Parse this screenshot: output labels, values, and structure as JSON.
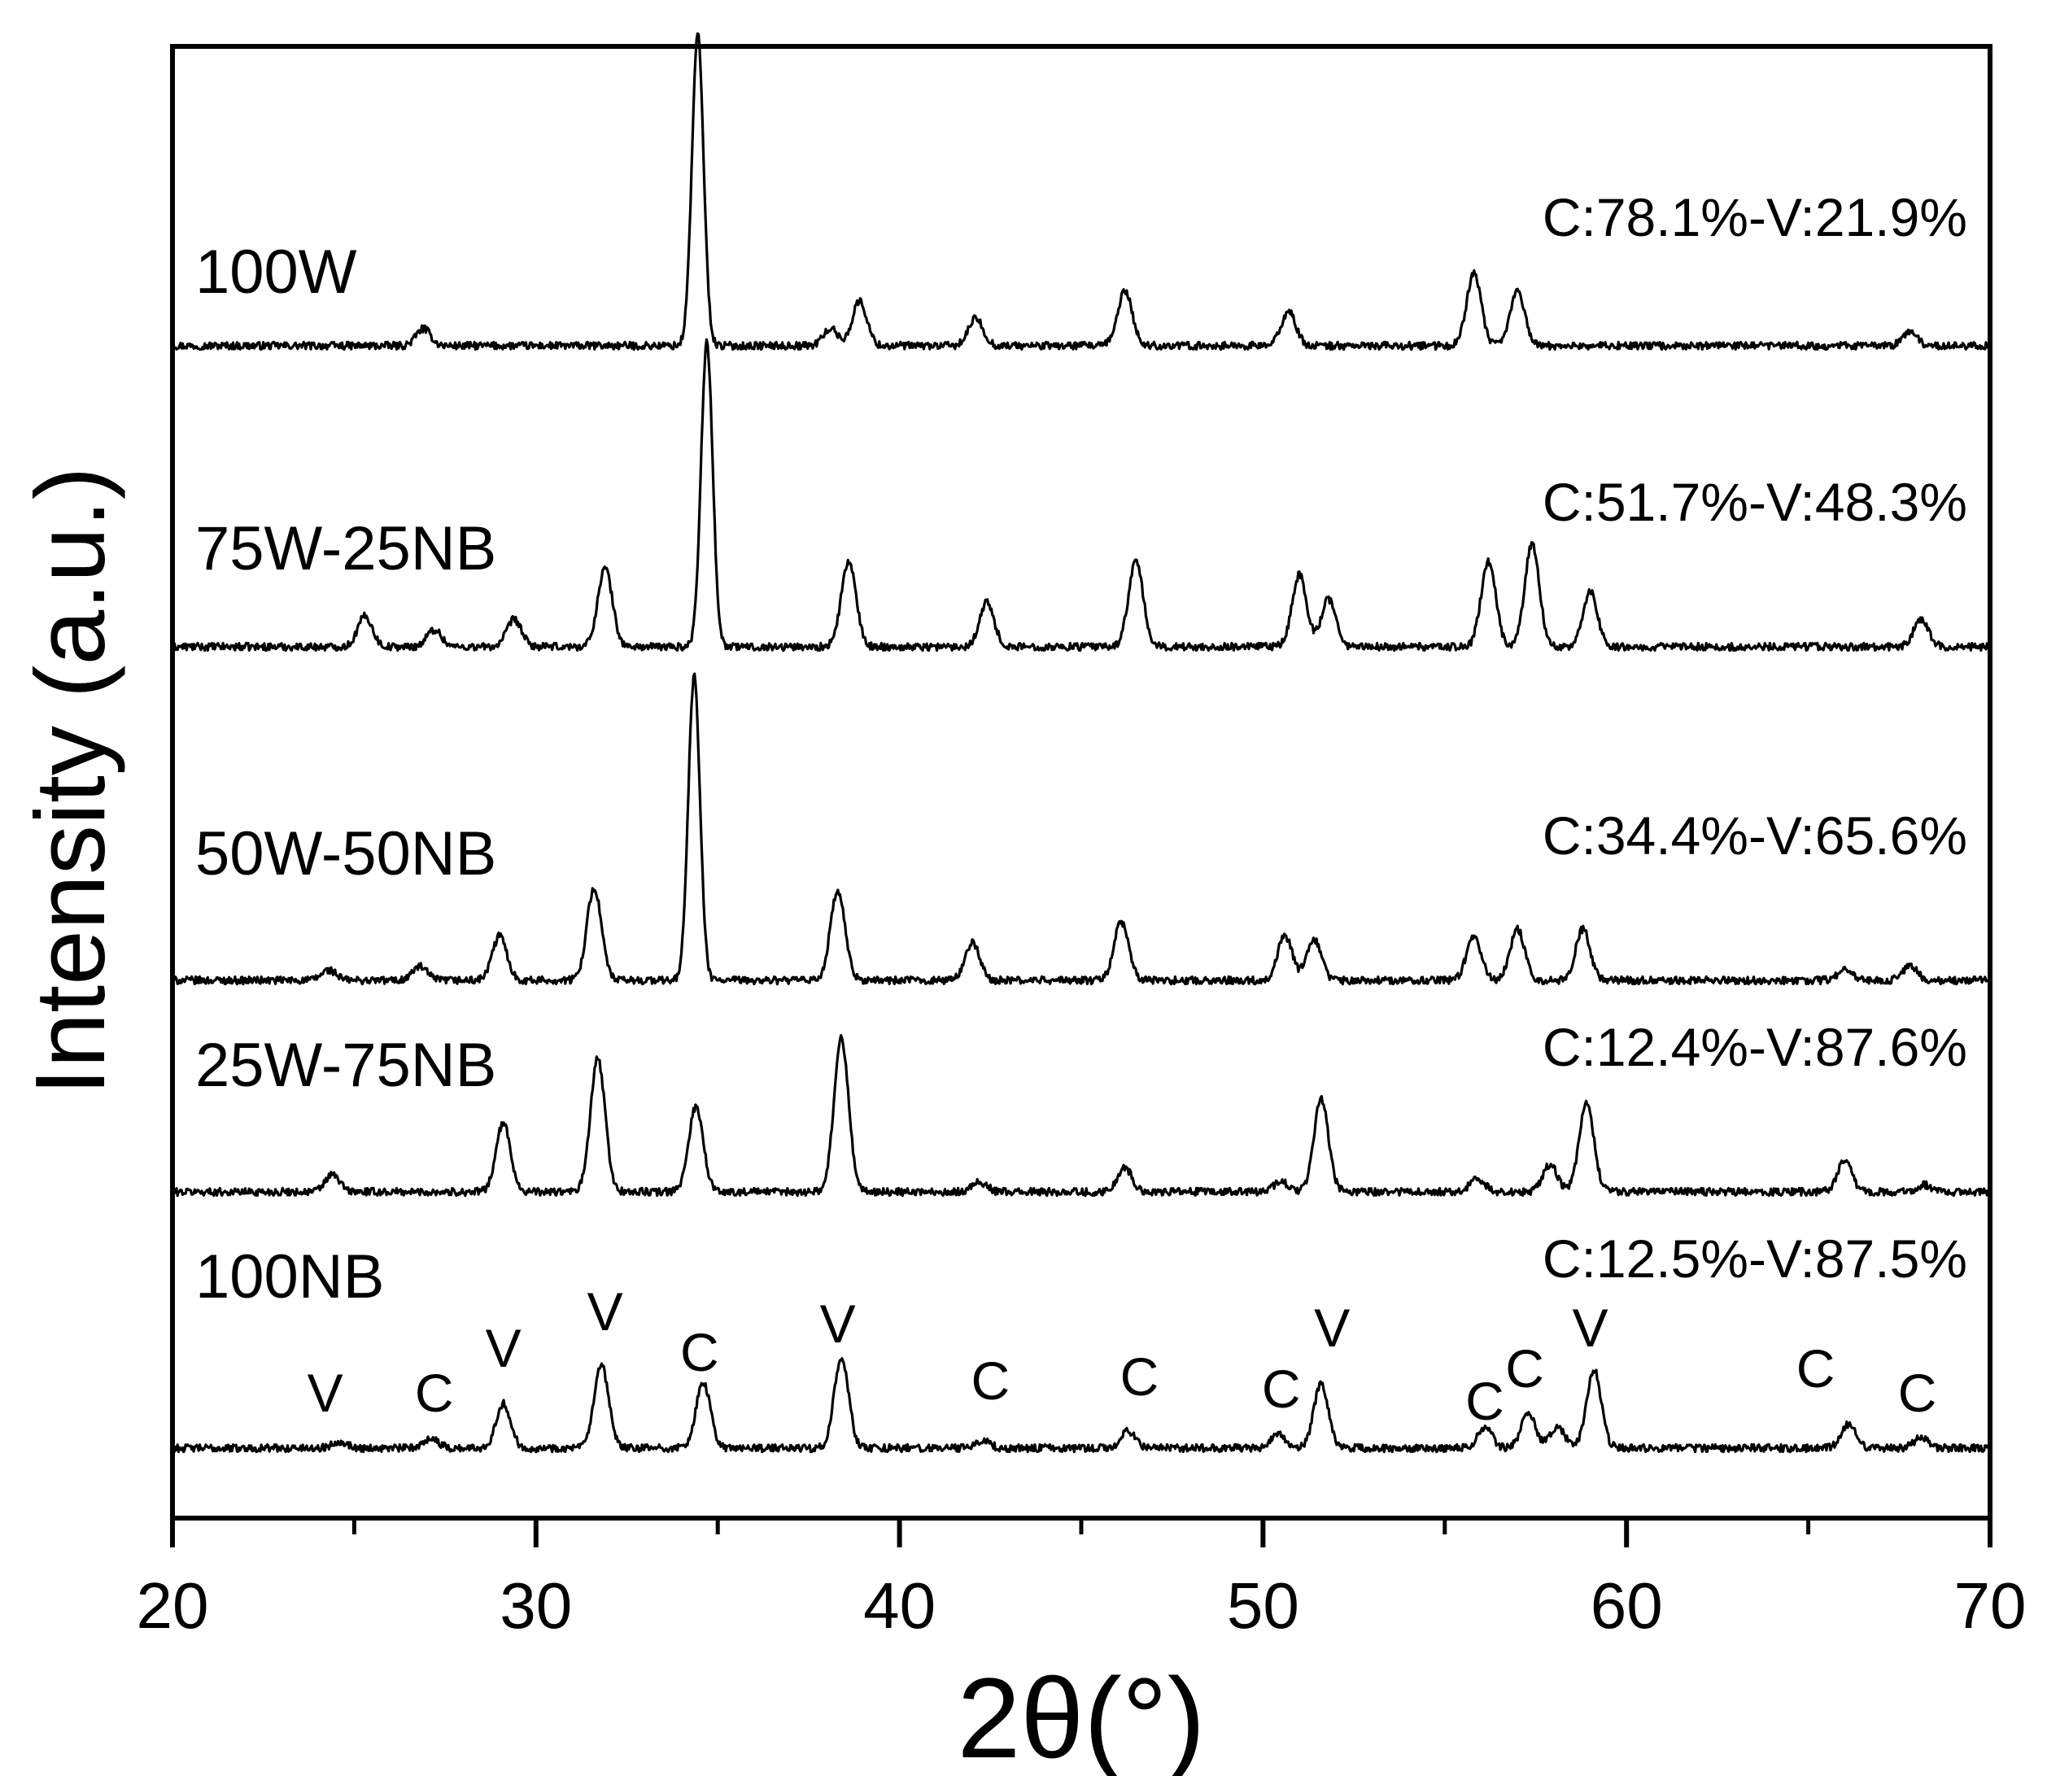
{
  "chart_data": {
    "type": "line",
    "title": "",
    "xlabel": "2θ(°)",
    "ylabel": "Intensity (a.u.)",
    "xlim": [
      20,
      70
    ],
    "xticks": [
      20,
      30,
      40,
      50,
      60,
      70
    ],
    "xtick_labels": [
      "20",
      "30",
      "40",
      "50",
      "60",
      "70"
    ],
    "grid": false,
    "series": [
      {
        "name": "100W",
        "annotation": "C:78.1%-V:21.9%",
        "peaks": [
          [
            26.9,
            0.05
          ],
          [
            34.45,
            0.91
          ],
          [
            38.1,
            0.05
          ],
          [
            38.9,
            0.13
          ],
          [
            42.1,
            0.08
          ],
          [
            46.2,
            0.16
          ],
          [
            50.7,
            0.1
          ],
          [
            55.8,
            0.21
          ],
          [
            57.0,
            0.16
          ],
          [
            67.8,
            0.04
          ]
        ]
      },
      {
        "name": "75W-25NB",
        "annotation": "C:51.7%-V:48.3%",
        "peaks": [
          [
            25.3,
            0.09
          ],
          [
            27.2,
            0.05
          ],
          [
            29.4,
            0.08
          ],
          [
            31.9,
            0.23
          ],
          [
            34.7,
            0.89
          ],
          [
            38.6,
            0.25
          ],
          [
            42.4,
            0.13
          ],
          [
            46.5,
            0.25
          ],
          [
            51.0,
            0.21
          ],
          [
            51.8,
            0.14
          ],
          [
            56.2,
            0.25
          ],
          [
            57.4,
            0.3
          ],
          [
            59.0,
            0.16
          ],
          [
            68.1,
            0.08
          ]
        ]
      },
      {
        "name": "50W-50NB",
        "annotation": "C:34.4%-V:65.6%",
        "peaks": [
          [
            24.3,
            0.03
          ],
          [
            26.8,
            0.04
          ],
          [
            29.0,
            0.13
          ],
          [
            31.6,
            0.27
          ],
          [
            34.35,
            0.89
          ],
          [
            38.3,
            0.26
          ],
          [
            42.0,
            0.11
          ],
          [
            46.1,
            0.17
          ],
          [
            50.6,
            0.13
          ],
          [
            51.4,
            0.12
          ],
          [
            55.8,
            0.13
          ],
          [
            57.0,
            0.15
          ],
          [
            58.8,
            0.15
          ],
          [
            66.0,
            0.03
          ],
          [
            67.8,
            0.04
          ]
        ]
      },
      {
        "name": "25W-75NB",
        "annotation": "C:12.4%-V:87.6%",
        "peaks": [
          [
            24.4,
            0.05
          ],
          [
            29.1,
            0.2
          ],
          [
            31.7,
            0.39
          ],
          [
            34.4,
            0.25
          ],
          [
            38.4,
            0.45
          ],
          [
            42.2,
            0.03
          ],
          [
            46.2,
            0.07
          ],
          [
            50.5,
            0.03
          ],
          [
            51.6,
            0.27
          ],
          [
            55.9,
            0.04
          ],
          [
            57.9,
            0.08
          ],
          [
            58.9,
            0.26
          ],
          [
            66.0,
            0.09
          ],
          [
            68.2,
            0.02
          ]
        ]
      },
      {
        "name": "100NB",
        "annotation": "C:12.5%-V:87.5%",
        "peaks": [
          [
            24.6,
            0.02
          ],
          [
            27.1,
            0.03
          ],
          [
            29.1,
            0.13
          ],
          [
            31.8,
            0.24
          ],
          [
            34.6,
            0.19
          ],
          [
            38.4,
            0.26
          ],
          [
            42.3,
            0.02
          ],
          [
            46.3,
            0.05
          ],
          [
            50.4,
            0.04
          ],
          [
            51.6,
            0.19
          ],
          [
            56.1,
            0.06
          ],
          [
            57.3,
            0.1
          ],
          [
            58.1,
            0.06
          ],
          [
            59.1,
            0.23
          ],
          [
            66.1,
            0.07
          ],
          [
            68.1,
            0.03
          ]
        ]
      }
    ],
    "phase_markers": [
      {
        "x": 24.2,
        "label": "V"
      },
      {
        "x": 27.2,
        "label": "C"
      },
      {
        "x": 29.1,
        "label": "V"
      },
      {
        "x": 31.9,
        "label": "V"
      },
      {
        "x": 34.5,
        "label": "C"
      },
      {
        "x": 38.3,
        "label": "V"
      },
      {
        "x": 42.5,
        "label": "C"
      },
      {
        "x": 46.6,
        "label": "C"
      },
      {
        "x": 50.5,
        "label": "C"
      },
      {
        "x": 51.9,
        "label": "V"
      },
      {
        "x": 56.1,
        "label": "C"
      },
      {
        "x": 57.2,
        "label": "C"
      },
      {
        "x": 59.0,
        "label": "V"
      },
      {
        "x": 65.2,
        "label": "C"
      },
      {
        "x": 68.0,
        "label": "C"
      }
    ]
  }
}
